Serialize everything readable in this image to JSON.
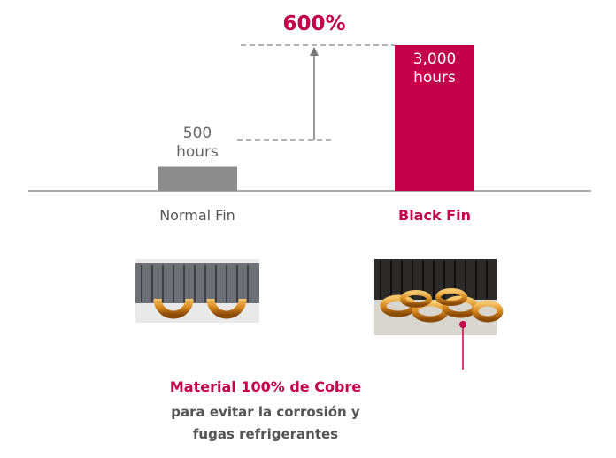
{
  "chart_data": {
    "type": "bar",
    "annotation": "600%",
    "categories": [
      "Normal Fin",
      "Black Fin"
    ],
    "values": [
      500,
      3000
    ],
    "value_labels": [
      "500 hours",
      "3,000 hours"
    ],
    "colors": [
      "#8c8c8c",
      "#c5004a"
    ],
    "callout": {
      "title": "Material 100% de Cobre",
      "lines": [
        "para evitar la corrosión y",
        "fugas refrigerantes"
      ]
    }
  }
}
